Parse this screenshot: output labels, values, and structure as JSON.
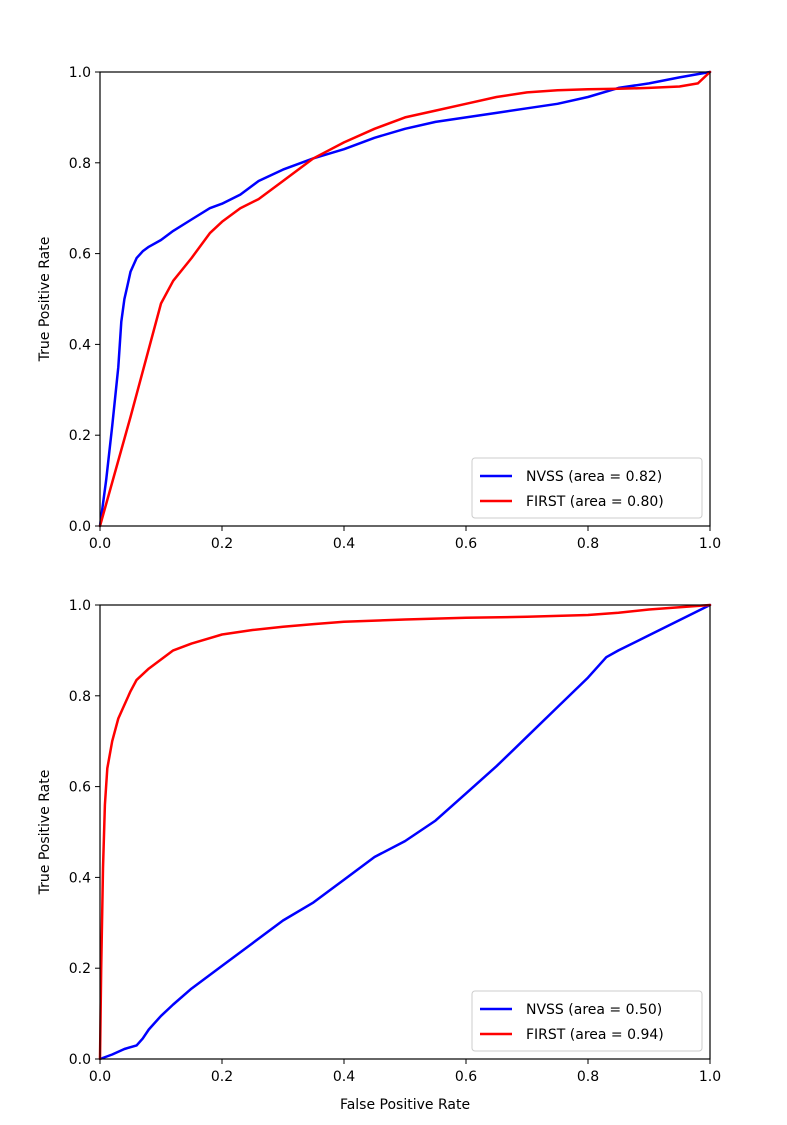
{
  "chart_data": [
    {
      "type": "line",
      "title": "",
      "xlabel": "",
      "ylabel": "True Positive Rate",
      "xlim": [
        0.0,
        1.0
      ],
      "ylim": [
        0.0,
        1.0
      ],
      "xticks": [
        "0.0",
        "0.2",
        "0.4",
        "0.6",
        "0.8",
        "1.0"
      ],
      "yticks": [
        "0.0",
        "0.2",
        "0.4",
        "0.6",
        "0.8",
        "1.0"
      ],
      "grid": false,
      "legend_position": "lower-right",
      "series": [
        {
          "name": "NVSS (area = 0.82)",
          "color": "#0000ff",
          "x": [
            0.0,
            0.01,
            0.02,
            0.03,
            0.035,
            0.04,
            0.045,
            0.05,
            0.06,
            0.07,
            0.08,
            0.1,
            0.12,
            0.15,
            0.18,
            0.2,
            0.23,
            0.26,
            0.3,
            0.35,
            0.4,
            0.45,
            0.5,
            0.55,
            0.6,
            0.65,
            0.7,
            0.75,
            0.8,
            0.85,
            0.9,
            0.95,
            1.0
          ],
          "y": [
            0.0,
            0.1,
            0.22,
            0.35,
            0.45,
            0.5,
            0.53,
            0.56,
            0.59,
            0.605,
            0.615,
            0.63,
            0.65,
            0.675,
            0.7,
            0.71,
            0.73,
            0.76,
            0.785,
            0.81,
            0.83,
            0.855,
            0.875,
            0.89,
            0.9,
            0.91,
            0.92,
            0.93,
            0.945,
            0.965,
            0.975,
            0.988,
            1.0
          ]
        },
        {
          "name": "FIRST (area = 0.80)",
          "color": "#ff0000",
          "x": [
            0.0,
            0.05,
            0.1,
            0.12,
            0.15,
            0.18,
            0.2,
            0.23,
            0.26,
            0.3,
            0.35,
            0.4,
            0.45,
            0.5,
            0.55,
            0.6,
            0.65,
            0.7,
            0.75,
            0.8,
            0.85,
            0.9,
            0.95,
            0.98,
            1.0
          ],
          "y": [
            0.0,
            0.24,
            0.49,
            0.54,
            0.59,
            0.645,
            0.67,
            0.7,
            0.72,
            0.76,
            0.81,
            0.845,
            0.875,
            0.9,
            0.915,
            0.93,
            0.945,
            0.955,
            0.96,
            0.962,
            0.963,
            0.965,
            0.968,
            0.975,
            1.0
          ]
        }
      ]
    },
    {
      "type": "line",
      "title": "",
      "xlabel": "False Positive Rate",
      "ylabel": "True Positive Rate",
      "xlim": [
        0.0,
        1.0
      ],
      "ylim": [
        0.0,
        1.0
      ],
      "xticks": [
        "0.0",
        "0.2",
        "0.4",
        "0.6",
        "0.8",
        "1.0"
      ],
      "yticks": [
        "0.0",
        "0.2",
        "0.4",
        "0.6",
        "0.8",
        "1.0"
      ],
      "grid": false,
      "legend_position": "lower-right",
      "series": [
        {
          "name": "NVSS (area = 0.50)",
          "color": "#0000ff",
          "x": [
            0.0,
            0.02,
            0.04,
            0.06,
            0.07,
            0.08,
            0.1,
            0.12,
            0.15,
            0.2,
            0.25,
            0.3,
            0.35,
            0.4,
            0.45,
            0.5,
            0.55,
            0.6,
            0.65,
            0.7,
            0.75,
            0.8,
            0.83,
            0.85,
            1.0
          ],
          "y": [
            0.0,
            0.01,
            0.022,
            0.03,
            0.045,
            0.065,
            0.095,
            0.12,
            0.155,
            0.205,
            0.255,
            0.305,
            0.345,
            0.395,
            0.445,
            0.48,
            0.525,
            0.585,
            0.645,
            0.71,
            0.775,
            0.84,
            0.885,
            0.9,
            1.0
          ]
        },
        {
          "name": "FIRST (area = 0.94)",
          "color": "#ff0000",
          "x": [
            0.0,
            0.002,
            0.005,
            0.008,
            0.012,
            0.02,
            0.03,
            0.04,
            0.05,
            0.06,
            0.08,
            0.1,
            0.12,
            0.15,
            0.2,
            0.25,
            0.3,
            0.35,
            0.4,
            0.5,
            0.6,
            0.7,
            0.8,
            0.85,
            0.9,
            0.95,
            1.0
          ],
          "y": [
            0.0,
            0.2,
            0.42,
            0.56,
            0.64,
            0.7,
            0.75,
            0.78,
            0.81,
            0.835,
            0.86,
            0.88,
            0.9,
            0.915,
            0.935,
            0.945,
            0.952,
            0.958,
            0.963,
            0.968,
            0.972,
            0.974,
            0.978,
            0.983,
            0.99,
            0.995,
            1.0
          ]
        }
      ]
    }
  ]
}
